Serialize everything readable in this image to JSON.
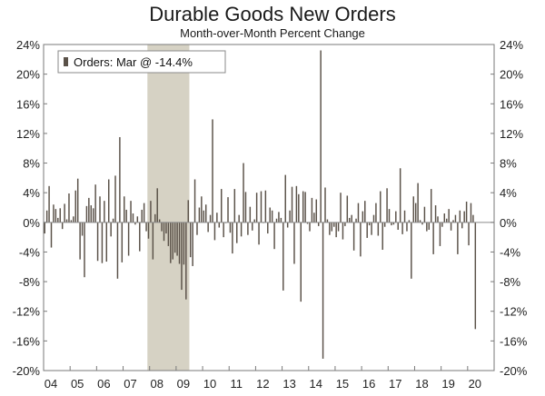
{
  "chart_data": {
    "type": "bar",
    "title": "Durable Goods New Orders",
    "subtitle": "Month-over-Month Percent Change",
    "xlabel": "",
    "ylabel": "",
    "ylim": [
      -20,
      24
    ],
    "y_ticks": [
      24,
      20,
      16,
      12,
      8,
      4,
      0,
      -4,
      -8,
      -12,
      -16,
      -20
    ],
    "y_tick_labels": [
      "24%",
      "20%",
      "16%",
      "12%",
      "8%",
      "4%",
      "0%",
      "-4%",
      "-8%",
      "-12%",
      "-16%",
      "-20%"
    ],
    "x_tick_labels": [
      "04",
      "05",
      "06",
      "07",
      "08",
      "09",
      "10",
      "11",
      "12",
      "13",
      "14",
      "15",
      "16",
      "17",
      "18",
      "19",
      "20"
    ],
    "start_year": 2004,
    "end_year": 2020,
    "series": [
      {
        "name": "Orders: Mar @ -14.4%",
        "color": "#5a5148",
        "start": "2004-01",
        "values": [
          -1.5,
          1.6,
          4.9,
          -3.4,
          2.4,
          1.8,
          0.6,
          1.9,
          -0.9,
          2.5,
          0.4,
          3.9,
          0.3,
          0.8,
          4.3,
          5.9,
          -5.0,
          -1.8,
          -7.4,
          2.2,
          3.3,
          2.3,
          1.9,
          5.1,
          -5.2,
          3.5,
          -5.5,
          2.9,
          -5.3,
          5.8,
          -1.9,
          0.5,
          6.3,
          -7.6,
          11.5,
          -5.4,
          3.5,
          1.7,
          -4.5,
          2.9,
          1.2,
          -0.3,
          0.8,
          -3.9,
          1.7,
          2.6,
          -1.2,
          -2.2,
          2.9,
          -5.0,
          1.1,
          4.6,
          0.4,
          -1.2,
          -2.5,
          -1.5,
          -3.2,
          -5.5,
          -5.0,
          -4.1,
          -4.5,
          -5.6,
          -9.1,
          -5.7,
          -10.4,
          3.0,
          -4.7,
          -5.9,
          5.8,
          -1.7,
          2.0,
          3.5,
          1.6,
          2.4,
          -1.3,
          1.0,
          13.9,
          -2.4,
          1.3,
          -0.7,
          4.5,
          -2.0,
          -0.1,
          3.4,
          -1.4,
          -4.2,
          4.5,
          -2.8,
          1.0,
          -1.9,
          8.0,
          4.1,
          -1.7,
          2.1,
          -1.1,
          0.4,
          4.0,
          -3.0,
          4.2,
          -0.1,
          4.3,
          -1.5,
          2.0,
          1.6,
          -3.6,
          0.5,
          1.4,
          0.6,
          -9.2,
          6.4,
          -0.7,
          1.6,
          4.8,
          -5.6,
          4.9,
          3.8,
          -10.7,
          4.2,
          4.1,
          -0.2,
          -1.2,
          3.3,
          1.3,
          3.1,
          -0.5,
          23.2,
          -18.4,
          4.7,
          0.4,
          -1.7,
          -1.2,
          -0.6,
          -2.0,
          -1.2,
          4.0,
          -2.3,
          -0.5,
          3.6,
          0.6,
          1.0,
          -3.8,
          0.5,
          2.6,
          -4.6,
          1.5,
          2.9,
          -2.1,
          -0.4,
          -1.7,
          1.0,
          2.6,
          -1.8,
          4.2,
          -3.7,
          -0.6,
          4.6,
          1.8,
          -0.4,
          -0.3,
          1.5,
          -1.0,
          7.3,
          -1.6,
          1.6,
          -1.2,
          0.3,
          -7.6,
          3.5,
          2.6,
          5.3,
          0.3,
          -0.3,
          2.1,
          -1.2,
          -1.0,
          4.5,
          -4.3,
          2.3,
          0.8,
          -3.2,
          -0.6,
          1.2,
          0.5,
          1.8,
          -1.1,
          0.3,
          1.0,
          -4.3,
          1.6,
          -0.8,
          1.5,
          2.8,
          -3.1,
          2.6,
          1.0,
          -14.4
        ]
      }
    ],
    "recession_shading": [
      {
        "start": "2007-12",
        "end": "2009-06",
        "color": "#d6d2c4"
      }
    ],
    "grid": false,
    "legend": {
      "position": "top-left",
      "label": "Orders: Mar @ -14.4%"
    }
  }
}
